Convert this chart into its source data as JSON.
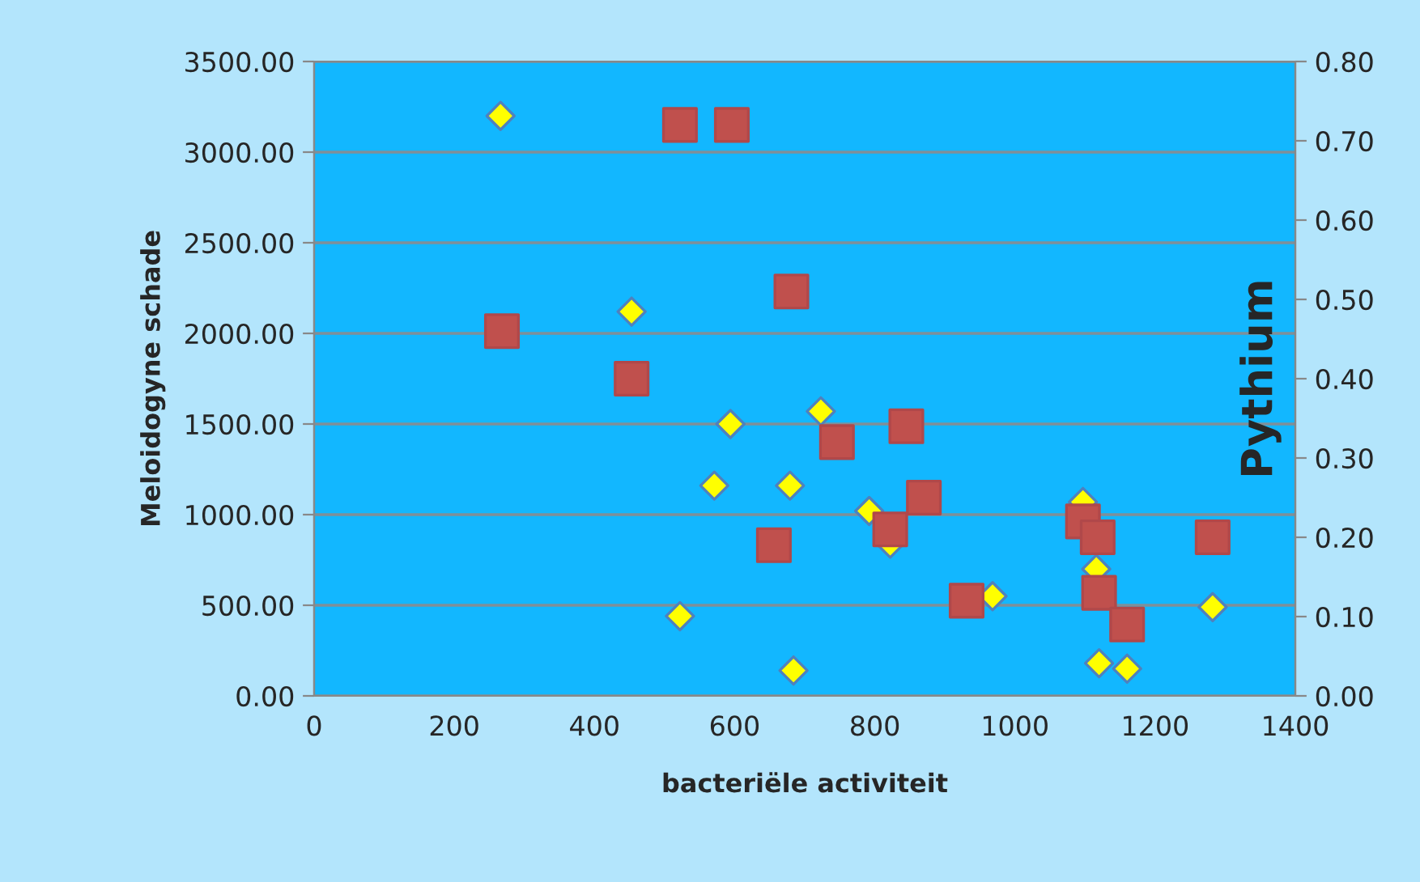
{
  "chart_data": {
    "type": "scatter",
    "xlabel": "bacteriële activiteit",
    "ylabel": "Meloidogyne schade",
    "y2label": "Pythium",
    "xlim": [
      0,
      1400
    ],
    "xticks": [
      0,
      200,
      400,
      600,
      800,
      1000,
      1200,
      1400
    ],
    "ylim": [
      0,
      3500
    ],
    "yticks": [
      {
        "value": 0,
        "label": "0.00"
      },
      {
        "value": 500,
        "label": "500.00"
      },
      {
        "value": 1000,
        "label": "1000.00"
      },
      {
        "value": 1500,
        "label": "1500.00"
      },
      {
        "value": 2000,
        "label": "2000.00"
      },
      {
        "value": 2500,
        "label": "2500.00"
      },
      {
        "value": 3000,
        "label": "3000.00"
      },
      {
        "value": 3500,
        "label": "3500.00"
      }
    ],
    "y2lim": [
      0,
      0.8
    ],
    "y2ticks": [
      {
        "value": 0,
        "label": "0.00"
      },
      {
        "value": 0.1,
        "label": "0.10"
      },
      {
        "value": 0.2,
        "label": "0.20"
      },
      {
        "value": 0.3,
        "label": "0.30"
      },
      {
        "value": 0.4,
        "label": "0.40"
      },
      {
        "value": 0.5,
        "label": "0.50"
      },
      {
        "value": 0.6,
        "label": "0.60"
      },
      {
        "value": 0.7,
        "label": "0.70"
      },
      {
        "value": 0.8,
        "label": "0.80"
      }
    ],
    "grid": "y",
    "series": [
      {
        "color": "#ffff00",
        "marker": "diamond",
        "x": [
          266,
          453,
          594,
          571,
          522,
          679,
          684,
          723,
          792,
          822,
          968,
          1097,
          1116,
          1120,
          1160,
          1282
        ],
        "values": [
          3200,
          2120,
          1500,
          1160,
          440,
          1160,
          140,
          1570,
          1020,
          840,
          550,
          1070,
          700,
          180,
          150,
          490
        ]
      },
      {
        "color": "#c0504d",
        "marker": "square",
        "axis": "y2",
        "x": [
          268,
          522,
          596,
          453,
          681,
          746,
          656,
          845,
          870,
          822,
          931,
          1097,
          1118,
          1120,
          1160,
          1282
        ],
        "values": [
          0.46,
          0.72,
          0.72,
          0.4,
          0.51,
          0.32,
          0.19,
          0.34,
          0.25,
          0.21,
          0.12,
          0.22,
          0.2,
          0.13,
          0.09,
          0.2
        ]
      }
    ]
  }
}
